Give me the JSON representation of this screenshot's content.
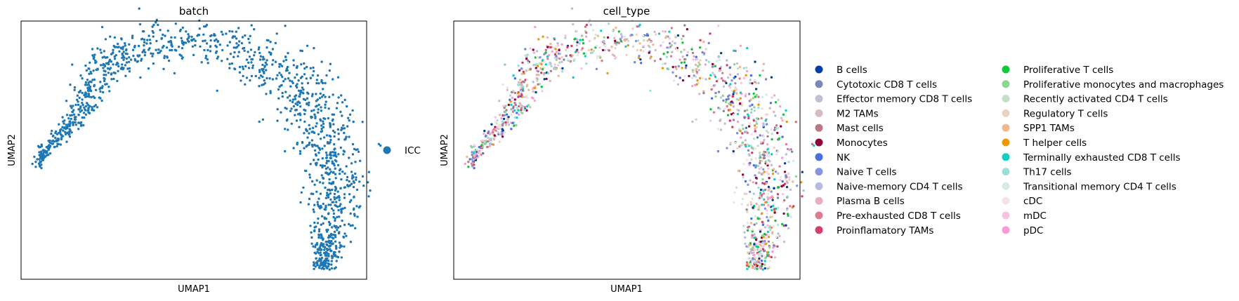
{
  "chart_data": [
    {
      "type": "scatter",
      "title": "batch",
      "xlabel": "UMAP1",
      "ylabel": "UMAP2",
      "xticks": false,
      "yticks": false,
      "legend_position": "right",
      "legend": [
        {
          "name": "ICC",
          "color": "#1f77b4"
        }
      ],
      "series": [
        {
          "name": "ICC",
          "color": "#1f77b4",
          "n_points": 7000
        }
      ]
    },
    {
      "type": "scatter",
      "title": "cell_type",
      "xlabel": "UMAP1",
      "ylabel": "UMAP2",
      "xticks": false,
      "yticks": false,
      "legend_position": "right",
      "legend_columns": 2,
      "legend": [
        {
          "name": "B cells",
          "color": "#023fa5"
        },
        {
          "name": "Cytotoxic CD8 T cells",
          "color": "#7d87b9"
        },
        {
          "name": "Effector memory CD8 T cells",
          "color": "#bec1d4"
        },
        {
          "name": "M2 TAMs",
          "color": "#d6bcc0"
        },
        {
          "name": "Mast cells",
          "color": "#bb7784"
        },
        {
          "name": "Monocytes",
          "color": "#8e063b"
        },
        {
          "name": "NK",
          "color": "#4a6fe3"
        },
        {
          "name": "Naive T cells",
          "color": "#8595e1"
        },
        {
          "name": "Naive-memory CD4 T cells",
          "color": "#b5bbe3"
        },
        {
          "name": "Plasma B cells",
          "color": "#e6afb9"
        },
        {
          "name": "Pre-exhausted CD8 T cells",
          "color": "#e07b91"
        },
        {
          "name": "Proinflamatory TAMs",
          "color": "#d33f6a"
        },
        {
          "name": "Proliferative T cells",
          "color": "#11c638"
        },
        {
          "name": "Proliferative monocytes and macrophages",
          "color": "#8dd593"
        },
        {
          "name": "Recently activated CD4 T cells",
          "color": "#c6dec7"
        },
        {
          "name": "Regulatory T cells",
          "color": "#ead3c6"
        },
        {
          "name": "SPP1 TAMs",
          "color": "#f0b98d"
        },
        {
          "name": "T helper cells",
          "color": "#ef9708"
        },
        {
          "name": "Terminally exhausted CD8 T cells",
          "color": "#0fcfc0"
        },
        {
          "name": "Th17 cells",
          "color": "#9cded6"
        },
        {
          "name": "Transitional memory CD4 T cells",
          "color": "#d5eae7"
        },
        {
          "name": "cDC",
          "color": "#f3e1eb"
        },
        {
          "name": "mDC",
          "color": "#f6c4e1"
        },
        {
          "name": "pDC",
          "color": "#f79cd4"
        }
      ]
    }
  ]
}
